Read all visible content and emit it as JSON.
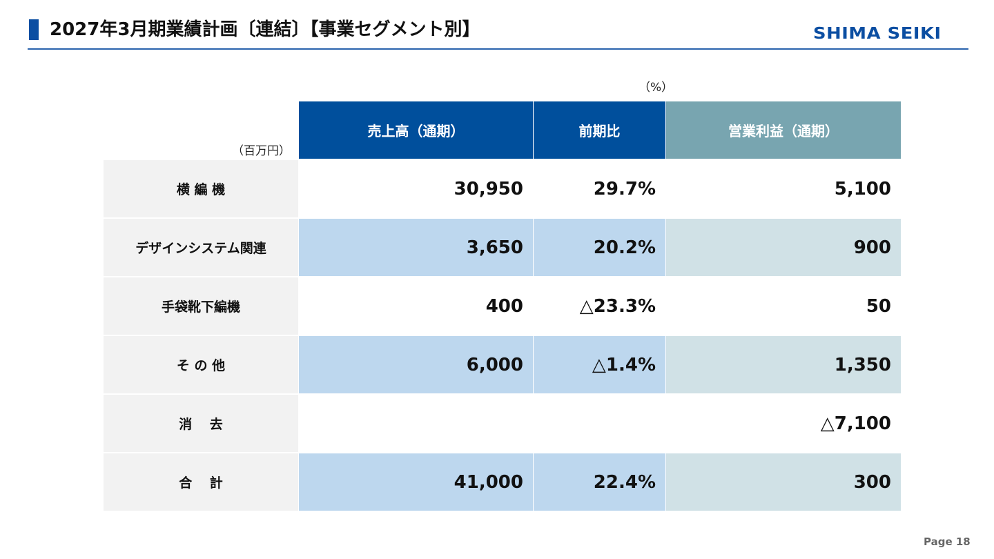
{
  "header": {
    "title": "2027年3月期業績計画〔連結〕【事業セグメント別】",
    "logo": "SHIMA SEIKI"
  },
  "table": {
    "unit_left": "（百万円）",
    "unit_right": "（%）",
    "columns": [
      "売上高（通期）",
      "前期比",
      "営業利益（通期）"
    ],
    "rows": [
      [
        "横 編 機",
        "30,950",
        "29.7%",
        "5,100"
      ],
      [
        "デザインシステム関連",
        "3,650",
        "20.2%",
        "900"
      ],
      [
        "手袋靴下編機",
        "400",
        "△23.3%",
        "50"
      ],
      [
        "そ の 他",
        "6,000",
        "△1.4%",
        "1,350"
      ],
      [
        "消　 去",
        null,
        null,
        "△7,100"
      ],
      [
        "合　 計",
        "41,000",
        "22.4%",
        "300"
      ]
    ]
  },
  "footer": {
    "page": "Page 18"
  }
}
